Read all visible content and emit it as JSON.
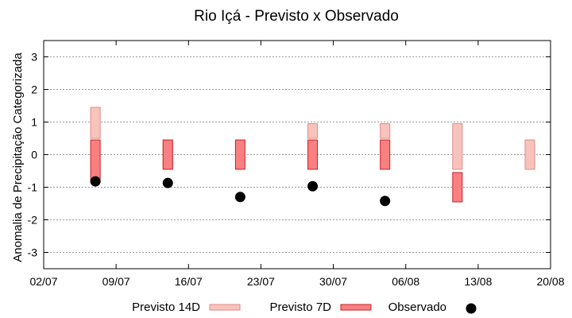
{
  "chart_data": {
    "type": "range-bar",
    "title": "Rio Içá - Previsto x Observado",
    "ylabel": "Anomalia de Precipitação Categorizada",
    "xlabel": "",
    "ylim": [
      -3.5,
      3.5
    ],
    "yticks": [
      3,
      2,
      1,
      0,
      -1,
      -2,
      -3
    ],
    "yticks_labels": [
      "3",
      "2",
      "1",
      "0",
      "-1",
      "-2",
      "-3"
    ],
    "xlim_dates": [
      "2024-07-02",
      "2024-08-20"
    ],
    "xticks": [
      "02/07",
      "09/07",
      "16/07",
      "23/07",
      "30/07",
      "06/08",
      "13/08",
      "20/08"
    ],
    "grid": "horizontal-dotted",
    "legend_position": "bottom",
    "series": [
      {
        "name": "Previsto 14D",
        "kind": "range",
        "color": "#f9c3bd",
        "stroke": "#e08a80",
        "points": [
          {
            "x": "2024-07-07",
            "low": 0.5,
            "high": 1.45
          },
          {
            "x": "2024-07-14",
            "low": -0.45,
            "high": 0.45
          },
          {
            "x": "2024-07-28",
            "low": 0.5,
            "high": 0.95
          },
          {
            "x": "2024-08-04",
            "low": 0.5,
            "high": 0.95
          },
          {
            "x": "2024-08-11",
            "low": -0.45,
            "high": 0.95
          },
          {
            "x": "2024-08-18",
            "low": -0.45,
            "high": 0.45
          }
        ]
      },
      {
        "name": "Previsto 7D",
        "kind": "range",
        "color": "#f98080",
        "stroke": "#c8202a",
        "points": [
          {
            "x": "2024-07-07",
            "low": -0.85,
            "high": 0.45
          },
          {
            "x": "2024-07-14",
            "low": -0.45,
            "high": 0.45
          },
          {
            "x": "2024-07-21",
            "low": -0.45,
            "high": 0.45
          },
          {
            "x": "2024-07-28",
            "low": -0.45,
            "high": 0.45
          },
          {
            "x": "2024-08-04",
            "low": -0.45,
            "high": 0.45
          },
          {
            "x": "2024-08-11",
            "low": -1.45,
            "high": -0.55
          }
        ]
      },
      {
        "name": "Observado",
        "kind": "point",
        "color": "#000000",
        "points": [
          {
            "x": "2024-07-07",
            "y": -0.82
          },
          {
            "x": "2024-07-14",
            "y": -0.87
          },
          {
            "x": "2024-07-21",
            "y": -1.3
          },
          {
            "x": "2024-07-28",
            "y": -0.97
          },
          {
            "x": "2024-08-04",
            "y": -1.42
          }
        ]
      }
    ]
  }
}
